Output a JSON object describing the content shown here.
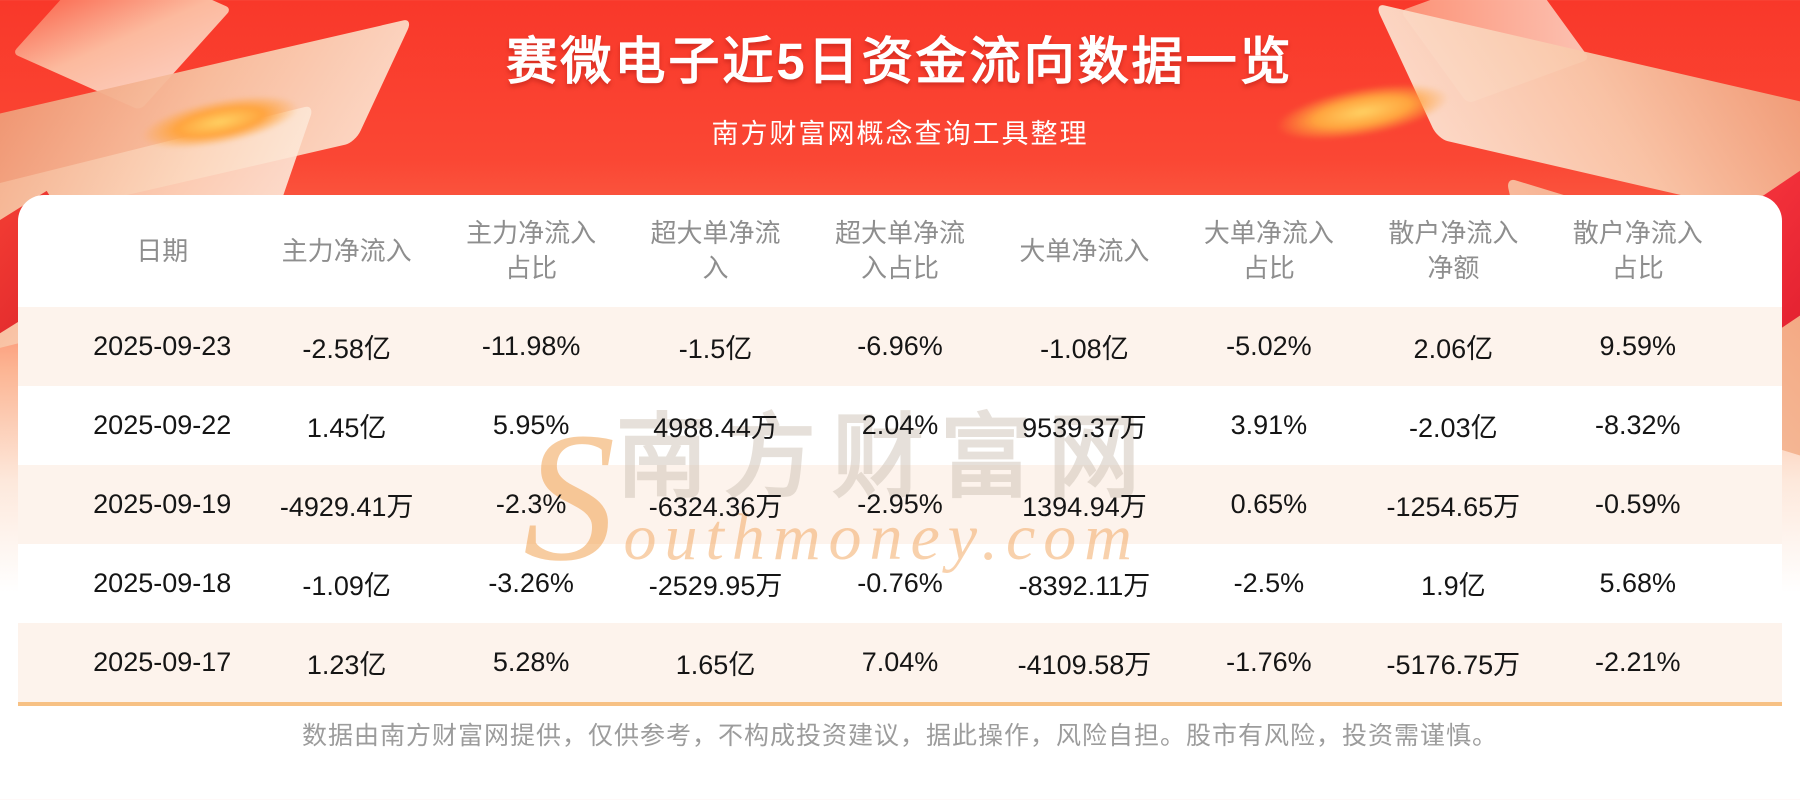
{
  "page": {
    "title": "赛微电子近5日资金流向数据一览",
    "subtitle": "南方财富网概念查询工具整理",
    "disclaimer": "数据由南方财富网提供，仅供参考，不构成投资建议，据此操作，风险自担。股市有风险，投资需谨慎。"
  },
  "watermark": {
    "cn": "南方财富网",
    "en": "Southmoney.com"
  },
  "chart_data": {
    "type": "table",
    "title": "赛微电子近5日资金流向数据一览",
    "columns": [
      "日期",
      "主力净流入",
      "主力净流入占比",
      "超大单净流入",
      "超大单净流入占比",
      "大单净流入",
      "大单净流入占比",
      "散户净流入净额",
      "散户净流入占比"
    ],
    "rows": [
      [
        "2025-09-23",
        "-2.58亿",
        "-11.98%",
        "-1.5亿",
        "-6.96%",
        "-1.08亿",
        "-5.02%",
        "2.06亿",
        "9.59%"
      ],
      [
        "2025-09-22",
        "1.45亿",
        "5.95%",
        "4988.44万",
        "2.04%",
        "9539.37万",
        "3.91%",
        "-2.03亿",
        "-8.32%"
      ],
      [
        "2025-09-19",
        "-4929.41万",
        "-2.3%",
        "-6324.36万",
        "-2.95%",
        "1394.94万",
        "0.65%",
        "-1254.65万",
        "-0.59%"
      ],
      [
        "2025-09-18",
        "-1.09亿",
        "-3.26%",
        "-2529.95万",
        "-0.76%",
        "-8392.11万",
        "-2.5%",
        "1.9亿",
        "5.68%"
      ],
      [
        "2025-09-17",
        "1.23亿",
        "5.28%",
        "1.65亿",
        "7.04%",
        "-4109.58万",
        "-1.76%",
        "-5176.75万",
        "-2.21%"
      ]
    ]
  },
  "colors": {
    "banner_red": "#f9382a",
    "stripe_row": "#fdf3ec",
    "table_bottom_border": "#f7c184",
    "header_text": "#8e8e8e",
    "cell_text": "#151515",
    "title_text": "#ffffff",
    "footer_text": "#9c9c9c",
    "gold_glow": "#ffa43e"
  }
}
